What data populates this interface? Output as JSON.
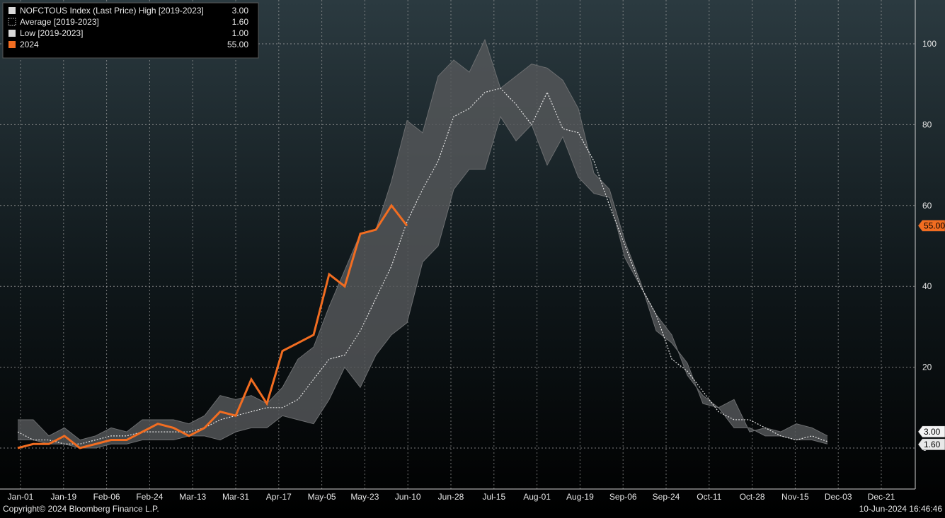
{
  "chart_data": {
    "type": "area",
    "x_categories": [
      "Jan-01",
      "Jan-19",
      "Feb-06",
      "Feb-24",
      "Mar-13",
      "Mar-31",
      "Apr-17",
      "May-05",
      "May-23",
      "Jun-10",
      "Jun-28",
      "Jul-15",
      "Aug-01",
      "Aug-19",
      "Sep-06",
      "Sep-24",
      "Oct-11",
      "Oct-28",
      "Nov-15",
      "Dec-03",
      "Dec-21"
    ],
    "y_ticks": [
      0,
      20,
      40,
      60,
      80,
      100
    ],
    "ylim": [
      -2,
      110
    ],
    "grid": true,
    "legend_position": "top-left",
    "legend": [
      {
        "label": "NOFCTOUS Index (Last Price) High [2019-2023]",
        "value": "3.00",
        "swatch": "high"
      },
      {
        "label": "Average  [2019-2023]",
        "value": "1.60",
        "swatch": "average"
      },
      {
        "label": "Low  [2019-2023]",
        "value": "1.00",
        "swatch": "low"
      },
      {
        "label": "2024",
        "value": "55.00",
        "swatch": "current"
      }
    ],
    "value_tags": [
      {
        "value": 55.0,
        "text": "55.00",
        "kind": "current"
      },
      {
        "value": 3.0,
        "text": "3.00",
        "kind": "high"
      },
      {
        "value": 1.6,
        "text": "1.60",
        "kind": "average"
      }
    ],
    "series": [
      {
        "name": "High [2019-2023]",
        "x": [
          0,
          1,
          2,
          3,
          4,
          5,
          6,
          7,
          8,
          9,
          10,
          11,
          12,
          13,
          14,
          15,
          16,
          17,
          18,
          19,
          20,
          21,
          22,
          23,
          24,
          25,
          26,
          27,
          28,
          29,
          30,
          31,
          32,
          33,
          34,
          35,
          36,
          37,
          38,
          39,
          40,
          41,
          42,
          43,
          44,
          45,
          46,
          47,
          48,
          49,
          50,
          51,
          52
        ],
        "values": [
          7,
          7,
          3,
          5,
          2,
          3,
          5,
          4,
          7,
          7,
          7,
          6,
          8,
          13,
          12,
          13,
          11,
          15,
          22,
          25,
          35,
          44,
          53,
          54,
          66,
          81,
          78,
          92,
          96,
          93,
          101,
          89,
          92,
          95,
          94,
          91,
          84,
          68,
          64,
          51,
          41,
          29,
          26,
          21,
          11,
          10,
          12,
          4,
          5,
          4,
          6,
          5,
          3
        ]
      },
      {
        "name": "Average [2019-2023]",
        "x": [
          0,
          1,
          2,
          3,
          4,
          5,
          6,
          7,
          8,
          9,
          10,
          11,
          12,
          13,
          14,
          15,
          16,
          17,
          18,
          19,
          20,
          21,
          22,
          23,
          24,
          25,
          26,
          27,
          28,
          29,
          30,
          31,
          32,
          33,
          34,
          35,
          36,
          37,
          38,
          39,
          40,
          41,
          42,
          43,
          44,
          45,
          46,
          47,
          48,
          49,
          50,
          51,
          52
        ],
        "values": [
          4,
          2,
          2,
          1,
          1,
          2,
          3,
          3,
          4,
          4,
          4,
          4,
          5,
          7,
          8,
          9,
          10,
          10,
          12,
          17,
          22,
          23,
          29,
          37,
          45,
          56,
          64,
          71,
          82,
          84,
          88,
          89,
          85,
          80,
          88,
          79,
          78,
          71,
          60,
          50,
          40,
          33,
          22,
          19,
          14,
          9,
          7,
          7,
          5,
          3,
          2,
          3,
          1.6
        ]
      },
      {
        "name": "Low [2019-2023]",
        "x": [
          0,
          1,
          2,
          3,
          4,
          5,
          6,
          7,
          8,
          9,
          10,
          11,
          12,
          13,
          14,
          15,
          16,
          17,
          18,
          19,
          20,
          21,
          22,
          23,
          24,
          25,
          26,
          27,
          28,
          29,
          30,
          31,
          32,
          33,
          34,
          35,
          36,
          37,
          38,
          39,
          40,
          41,
          42,
          43,
          44,
          45,
          46,
          47,
          48,
          49,
          50,
          51,
          52
        ],
        "values": [
          2,
          2,
          1,
          1,
          0,
          0,
          1,
          1,
          2,
          2,
          2,
          3,
          3,
          2,
          4,
          5,
          5,
          8,
          7,
          6,
          12,
          20,
          15,
          23,
          28,
          31,
          46,
          50,
          64,
          69,
          69,
          82,
          76,
          80,
          70,
          77,
          67,
          63,
          62,
          47,
          40,
          33,
          28,
          18,
          13,
          10,
          5,
          5,
          3,
          3,
          2,
          2,
          1
        ]
      },
      {
        "name": "2024",
        "x": [
          0,
          1,
          2,
          3,
          4,
          5,
          6,
          7,
          8,
          9,
          10,
          11,
          12,
          13,
          14,
          15,
          16,
          17,
          18,
          19,
          20,
          21,
          22,
          23,
          24,
          25
        ],
        "values": [
          0,
          1,
          1,
          3,
          0,
          1,
          2,
          2,
          4,
          6,
          5,
          3,
          5,
          9,
          8,
          17,
          11,
          24,
          26,
          28,
          43,
          40,
          53,
          54,
          60,
          55
        ]
      }
    ]
  },
  "footer": {
    "copyright": "Copyright© 2024 Bloomberg Finance L.P.",
    "timestamp": "10-Jun-2024 16:46:46"
  },
  "colors": {
    "current": "#f26d21",
    "band": "#56585a",
    "band_edge": "#6c6e70",
    "average": "#e4e4e4",
    "grid": "#a9a9a9",
    "text": "#e6e6e6",
    "bg_top": "#2b3a40",
    "bg_bottom": "#000000"
  }
}
